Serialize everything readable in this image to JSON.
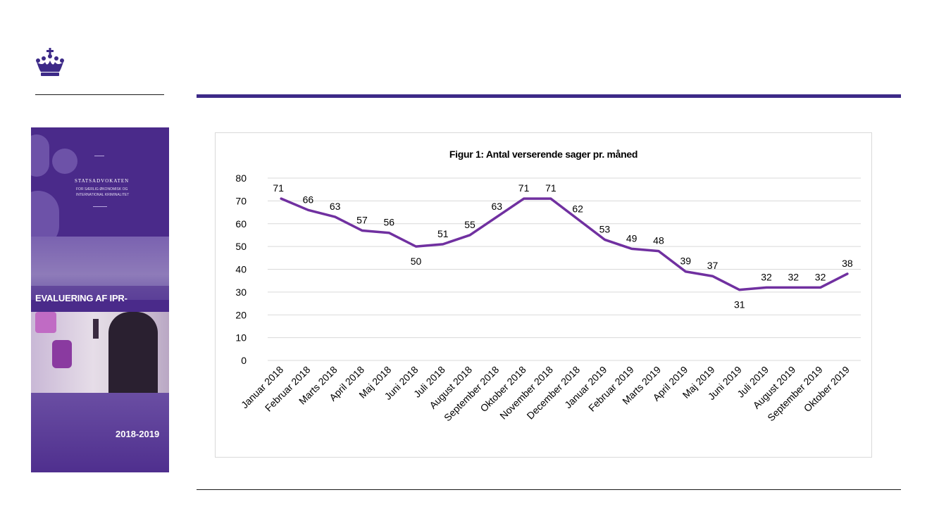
{
  "cover": {
    "publisher": "STATSADVOKATEN",
    "publisher_sub": "FOR SÆRLIG ØKONOMISK OG INTERNATIONAL KRIMINALITET",
    "title": "EVALUERING AF IPR-OMRÅDET",
    "years": "2018-2019"
  },
  "colors": {
    "accent": "#3d2a88",
    "line": "#7030a0",
    "cover": "#4a2a8a"
  },
  "chart_data": {
    "type": "line",
    "title": "Figur 1: Antal verserende sager pr. måned",
    "xlabel": "",
    "ylabel": "",
    "ylim": [
      0,
      80
    ],
    "yticks": [
      0,
      10,
      20,
      30,
      40,
      50,
      60,
      70,
      80
    ],
    "grid": true,
    "categories": [
      "Januar 2018",
      "Februar 2018",
      "Marts 2018",
      "April 2018",
      "Maj 2018",
      "Juni 2018",
      "Juli 2018",
      "August 2018",
      "September 2018",
      "Oktober 2018",
      "November 2018",
      "December 2018",
      "Januar 2019",
      "Februar 2019",
      "Marts 2019",
      "April 2019",
      "Maj 2019",
      "Juni 2019",
      "Juli 2019",
      "August 2019",
      "September 2019",
      "Oktober 2019"
    ],
    "series": [
      {
        "values": [
          71,
          66,
          63,
          57,
          56,
          50,
          51,
          55,
          63,
          71,
          71,
          62,
          53,
          49,
          48,
          39,
          37,
          31,
          32,
          32,
          32,
          38
        ]
      }
    ]
  }
}
